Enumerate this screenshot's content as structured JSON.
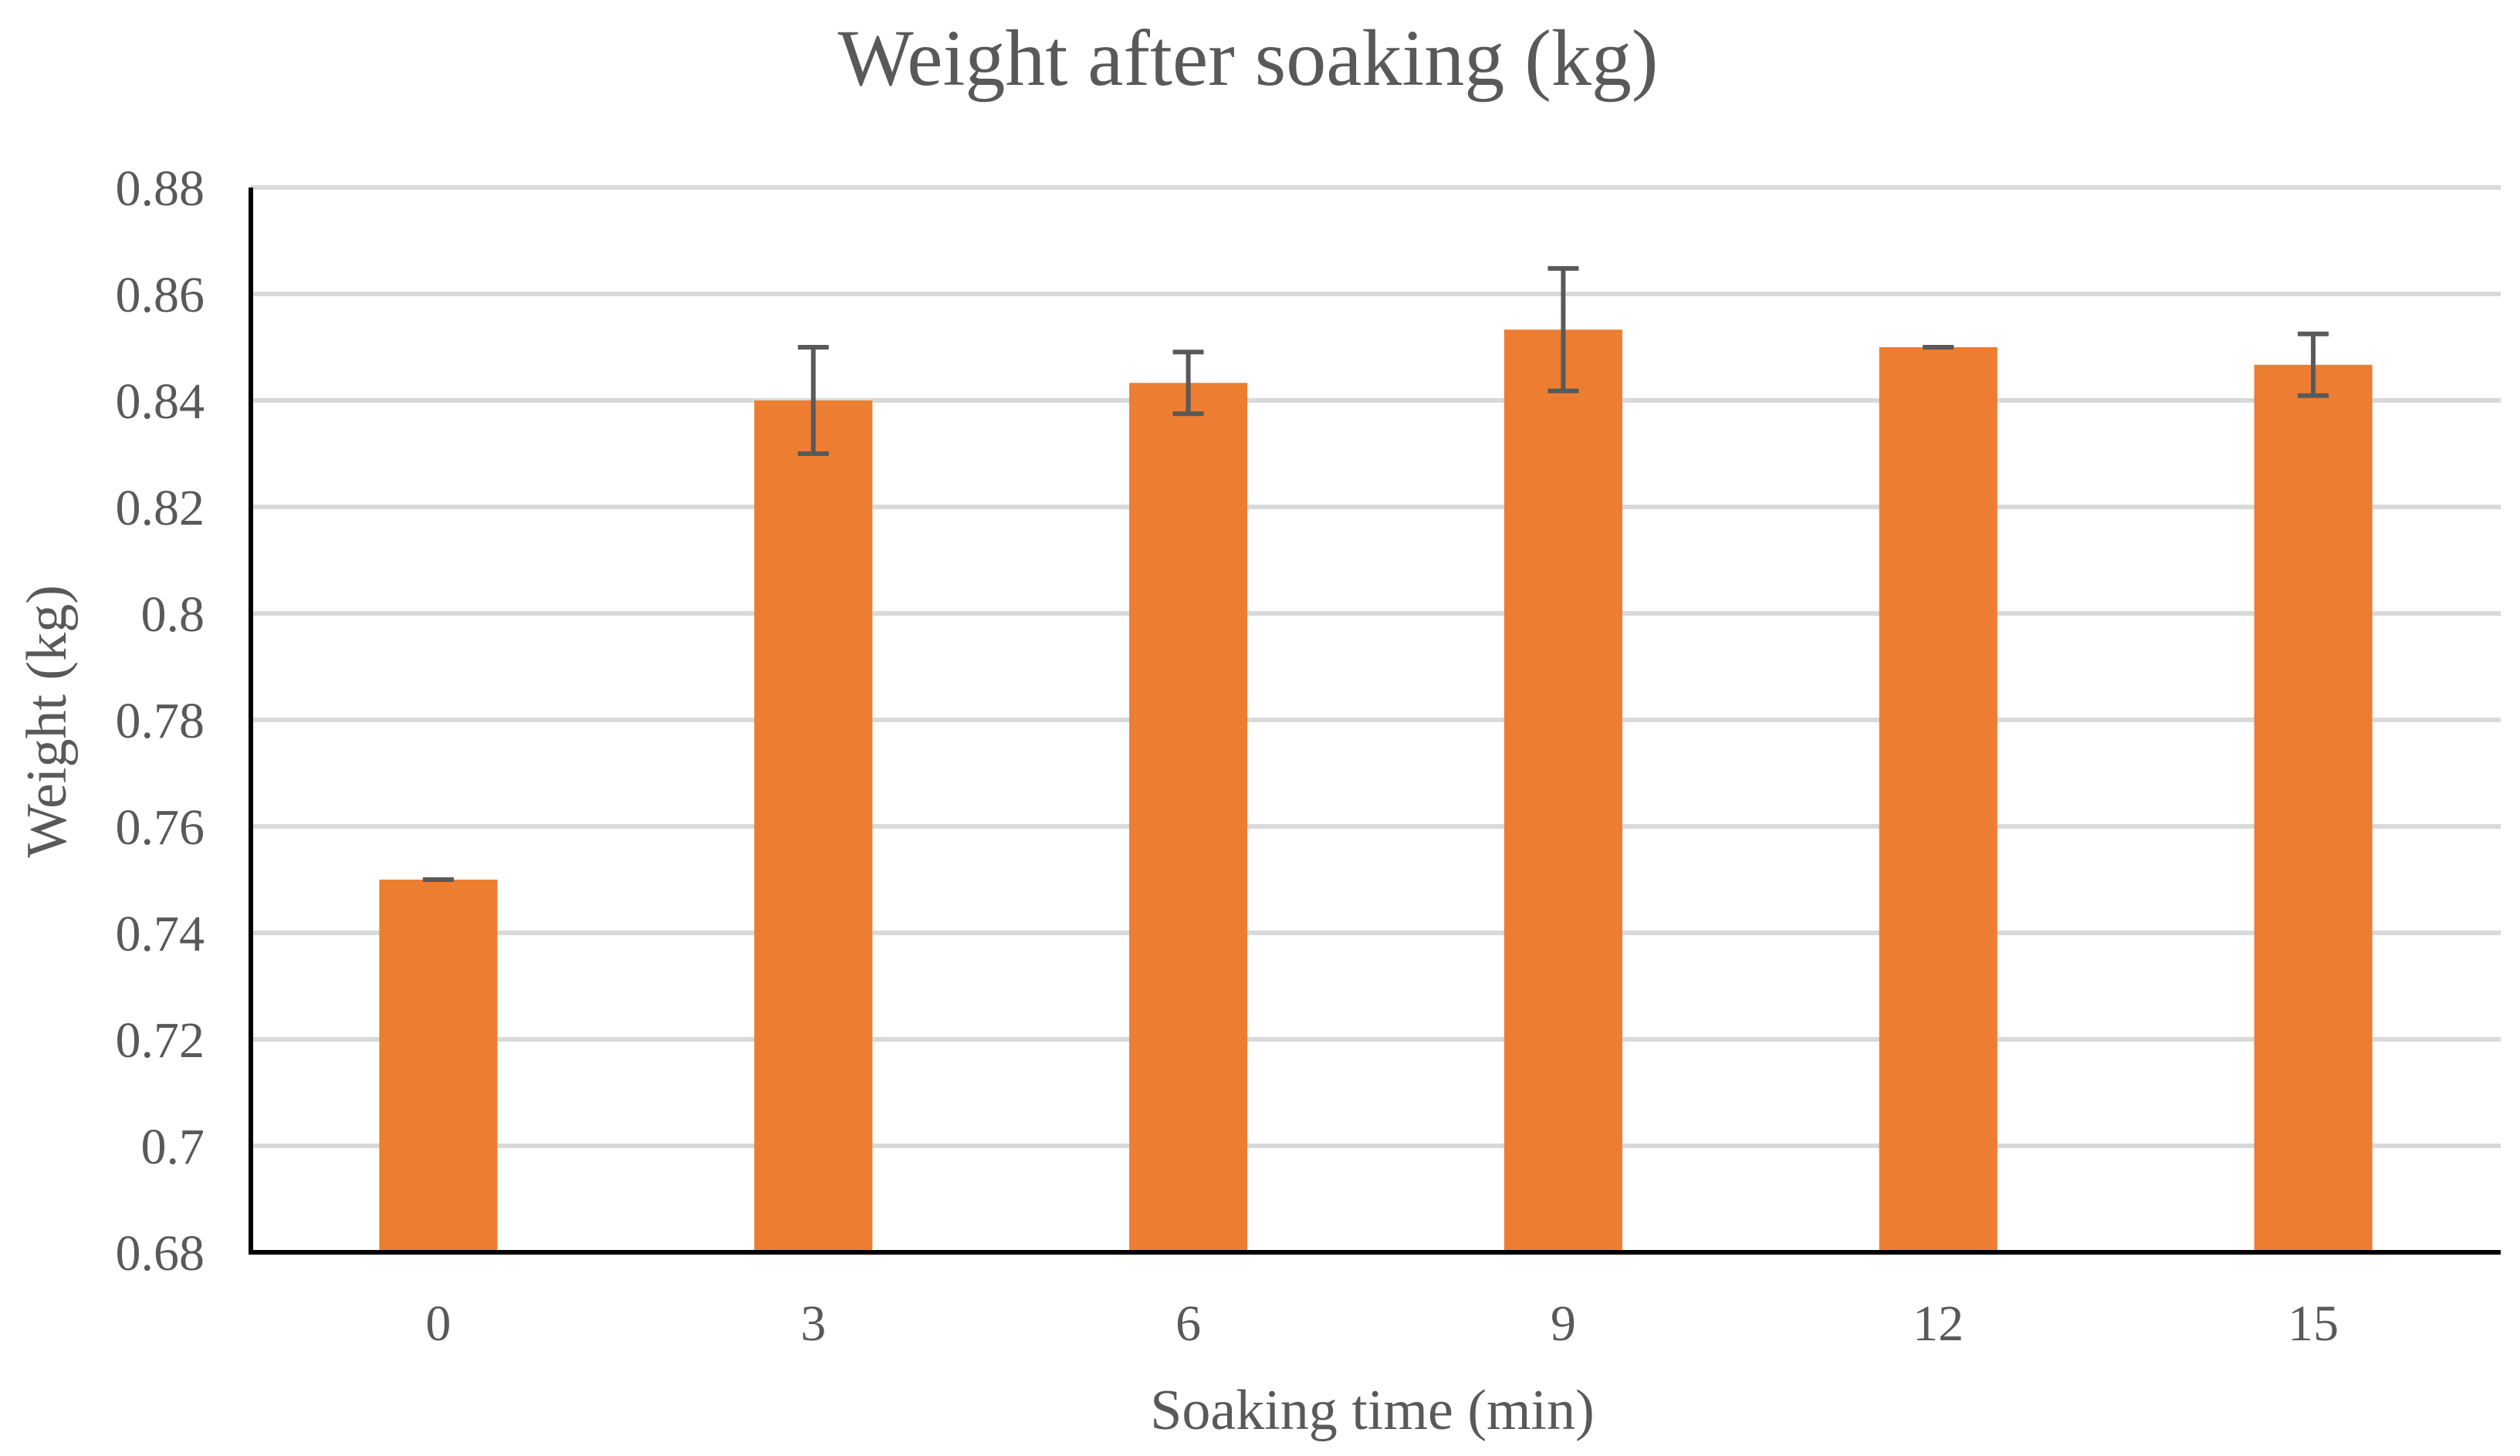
{
  "chart_data": {
    "type": "bar",
    "title": "Weight after soaking (kg)",
    "xlabel": "Soaking time (min)",
    "ylabel": "Weight (kg)",
    "categories": [
      "0",
      "3",
      "6",
      "9",
      "12",
      "15"
    ],
    "values": [
      0.75,
      0.84,
      0.8433,
      0.8533,
      0.85,
      0.8467
    ],
    "error": [
      0.0,
      0.01,
      0.0058,
      0.0115,
      0.0,
      0.0058
    ],
    "ylim": [
      0.68,
      0.88
    ],
    "yticks": [
      "0.68",
      "0.7",
      "0.72",
      "0.74",
      "0.76",
      "0.78",
      "0.8",
      "0.82",
      "0.84",
      "0.86",
      "0.88"
    ],
    "grid": true,
    "legend": "none",
    "bar_color": "#ED7D31",
    "error_bar_color": "#595959",
    "gridline_color": "#D9D9D9",
    "text_color": "#595959"
  }
}
